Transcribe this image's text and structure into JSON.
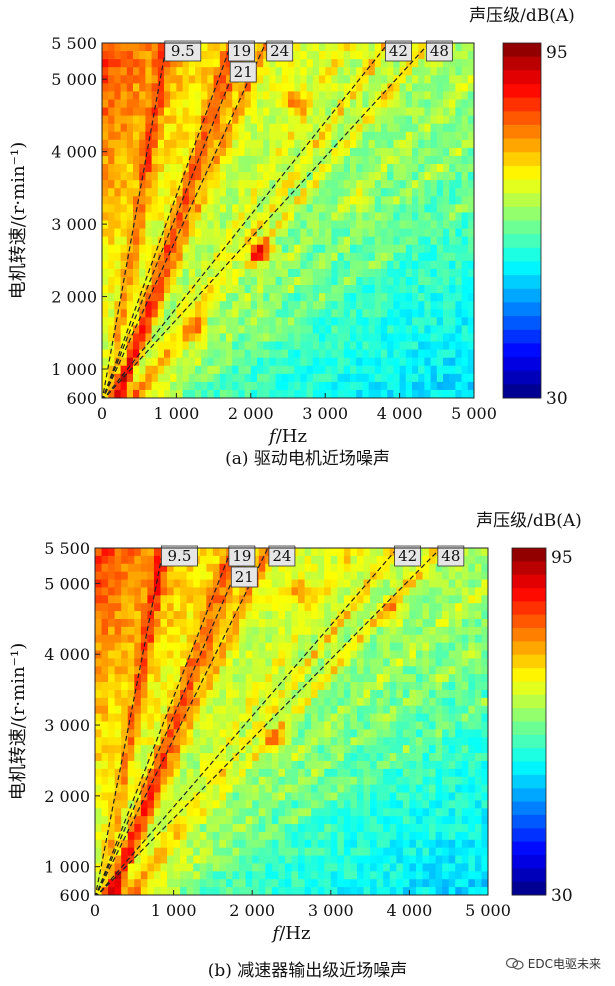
{
  "chart_data": [
    {
      "type": "heatmap",
      "panel": "a",
      "caption": "(a)  驱动电机近场噪声",
      "xlabel_var": "f",
      "xlabel_unit": "/Hz",
      "ylabel": "电机转速/(r·min⁻¹)",
      "colorbar_title": "声压级/dB(A)",
      "colorbar_range": [
        30,
        95
      ],
      "colorbar_max_label": "95",
      "colorbar_min_label": "30",
      "xlim": [
        0,
        5000
      ],
      "ylim": [
        600,
        5500
      ],
      "x_ticks": [
        0,
        1000,
        2000,
        3000,
        4000,
        5000
      ],
      "x_tick_labels": [
        "0",
        "1 000",
        "2 000",
        "3 000",
        "4 000",
        "5 000"
      ],
      "y_ticks": [
        600,
        1000,
        2000,
        3000,
        4000,
        5000,
        5500
      ],
      "y_tick_labels": [
        "600",
        "1 000",
        "2 000",
        "3 000",
        "4 000",
        "5 000",
        "5 500"
      ],
      "orders": [
        {
          "label": "9.5",
          "order": 9.5
        },
        {
          "label": "19",
          "order": 19
        },
        {
          "label": "21",
          "order": 21
        },
        {
          "label": "24",
          "order": 24
        },
        {
          "label": "42",
          "order": 42
        },
        {
          "label": "48",
          "order": 48
        }
      ],
      "hotspots": [
        {
          "x": 2150,
          "y": 2600,
          "level": 92
        },
        {
          "x": 2600,
          "y": 4700,
          "level": 82
        },
        {
          "x": 3500,
          "y": 3300,
          "level": 78
        },
        {
          "x": 1250,
          "y": 1550,
          "level": 80
        }
      ]
    },
    {
      "type": "heatmap",
      "panel": "b",
      "caption": "(b)  减速器输出级近场噪声",
      "xlabel_var": "f",
      "xlabel_unit": "/Hz",
      "ylabel": "电机转速/(r·min⁻¹)",
      "colorbar_title": "声压级/dB(A)",
      "colorbar_range": [
        30,
        95
      ],
      "colorbar_max_label": "95",
      "colorbar_min_label": "30",
      "xlim": [
        0,
        5000
      ],
      "ylim": [
        600,
        5500
      ],
      "x_ticks": [
        0,
        1000,
        2000,
        3000,
        4000,
        5000
      ],
      "x_tick_labels": [
        "0",
        "1 000",
        "2 000",
        "3 000",
        "4 000",
        "5 000"
      ],
      "y_ticks": [
        600,
        1000,
        2000,
        3000,
        4000,
        5000,
        5500
      ],
      "y_tick_labels": [
        "600",
        "1 000",
        "2 000",
        "3 000",
        "4 000",
        "5 000",
        "5 500"
      ],
      "orders": [
        {
          "label": "9.5",
          "order": 9.5
        },
        {
          "label": "19",
          "order": 19
        },
        {
          "label": "21",
          "order": 21
        },
        {
          "label": "24",
          "order": 24
        },
        {
          "label": "42",
          "order": 42
        },
        {
          "label": "48",
          "order": 48
        }
      ],
      "hotspots": [
        {
          "x": 2300,
          "y": 2800,
          "level": 85
        },
        {
          "x": 3800,
          "y": 4600,
          "level": 80
        },
        {
          "x": 2600,
          "y": 4900,
          "level": 80
        }
      ]
    }
  ],
  "watermark": {
    "text": "EDC电驱未来",
    "icon": "wechat-icon"
  }
}
